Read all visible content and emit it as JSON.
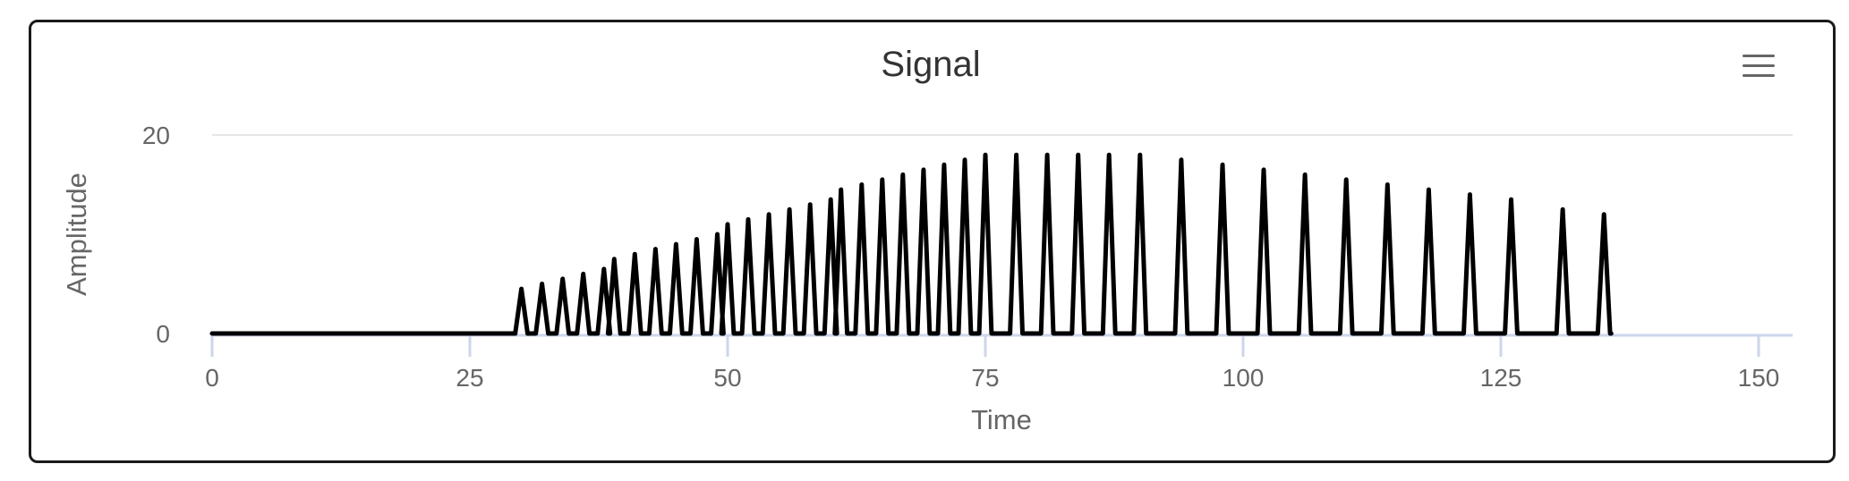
{
  "chart_data": {
    "type": "line",
    "title": "Signal",
    "xlabel": "Time",
    "ylabel": "Amplitude",
    "xlim": [
      0,
      150
    ],
    "ylim": [
      0,
      20
    ],
    "xticks": [
      0,
      25,
      50,
      75,
      100,
      125,
      150
    ],
    "yticks": [
      0,
      20
    ],
    "grid": "horizontal",
    "legend": "none",
    "series": [
      {
        "color": "#000000",
        "pulse_half_width": 0.6,
        "peaks": [
          [
            30,
            4.5
          ],
          [
            32,
            5.0
          ],
          [
            34,
            5.5
          ],
          [
            36,
            6.0
          ],
          [
            38,
            6.5
          ],
          [
            39,
            7.5
          ],
          [
            41,
            8.0
          ],
          [
            43,
            8.5
          ],
          [
            45,
            9.0
          ],
          [
            47,
            9.5
          ],
          [
            49,
            10.0
          ],
          [
            50,
            11.0
          ],
          [
            52,
            11.5
          ],
          [
            54,
            12.0
          ],
          [
            56,
            12.5
          ],
          [
            58,
            13.0
          ],
          [
            60,
            13.5
          ],
          [
            61,
            14.5
          ],
          [
            63,
            15.0
          ],
          [
            65,
            15.5
          ],
          [
            67,
            16.0
          ],
          [
            69,
            16.5
          ],
          [
            71,
            17.0
          ],
          [
            73,
            17.5
          ],
          [
            75,
            18.0
          ],
          [
            78,
            18.0
          ],
          [
            81,
            18.0
          ],
          [
            84,
            18.0
          ],
          [
            87,
            18.0
          ],
          [
            90,
            18.0
          ],
          [
            94,
            17.5
          ],
          [
            98,
            17.0
          ],
          [
            102,
            16.5
          ],
          [
            106,
            16.0
          ],
          [
            110,
            15.5
          ],
          [
            114,
            15.0
          ],
          [
            118,
            14.5
          ],
          [
            122,
            14.0
          ],
          [
            126,
            13.5
          ],
          [
            131,
            12.5
          ],
          [
            135,
            12.0
          ]
        ],
        "x_start": 0,
        "x_end": 135.7
      }
    ]
  },
  "menu": {
    "icon": "hamburger-menu-icon"
  }
}
